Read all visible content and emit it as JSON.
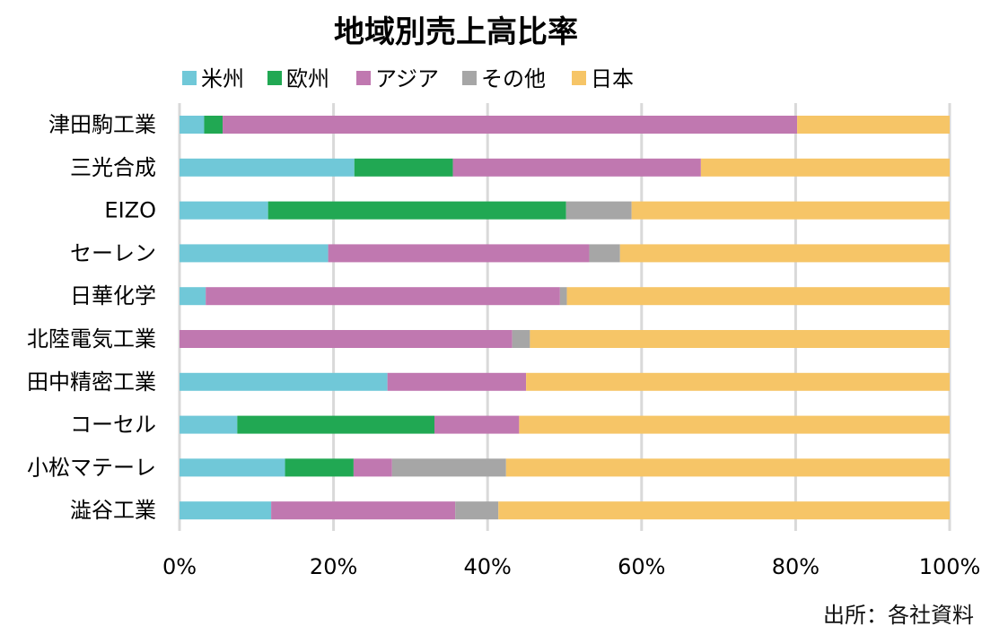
{
  "chart_data": {
    "type": "bar",
    "orientation": "horizontal",
    "stacked": "percent",
    "title": "地域別売上高比率",
    "categories": [
      "津田駒工業",
      "三光合成",
      "EIZO",
      "セーレン",
      "日華化学",
      "北陸電気工業",
      "田中精密工業",
      "コーセル",
      "小松マテーレ",
      "澁谷工業"
    ],
    "series": [
      {
        "name": "米州",
        "color": "#70C8D8",
        "values": [
          3.2,
          22.7,
          11.5,
          19.3,
          3.4,
          0,
          27.0,
          7.5,
          13.7,
          11.9
        ]
      },
      {
        "name": "欧州",
        "color": "#21A853",
        "values": [
          2.4,
          12.8,
          38.7,
          0,
          0,
          0,
          0,
          25.6,
          8.9,
          0
        ]
      },
      {
        "name": "アジア",
        "color": "#C078B0",
        "values": [
          74.6,
          32.2,
          0,
          33.9,
          46.0,
          43.2,
          18.0,
          11.0,
          5.0,
          23.9
        ]
      },
      {
        "name": "その他",
        "color": "#A6A6A6",
        "values": [
          0,
          0,
          8.5,
          4.0,
          0.9,
          2.3,
          0,
          0,
          14.8,
          5.6
        ]
      },
      {
        "name": "日本",
        "color": "#F6C567",
        "values": [
          19.8,
          32.3,
          41.3,
          42.8,
          49.7,
          54.5,
          55.0,
          55.9,
          57.6,
          58.6
        ]
      }
    ],
    "xlim": [
      0,
      100
    ],
    "x_ticks": [
      "0%",
      "20%",
      "40%",
      "60%",
      "80%",
      "100%"
    ],
    "grid": true,
    "legend_position": "top"
  },
  "source_note": "出所：各社資料"
}
